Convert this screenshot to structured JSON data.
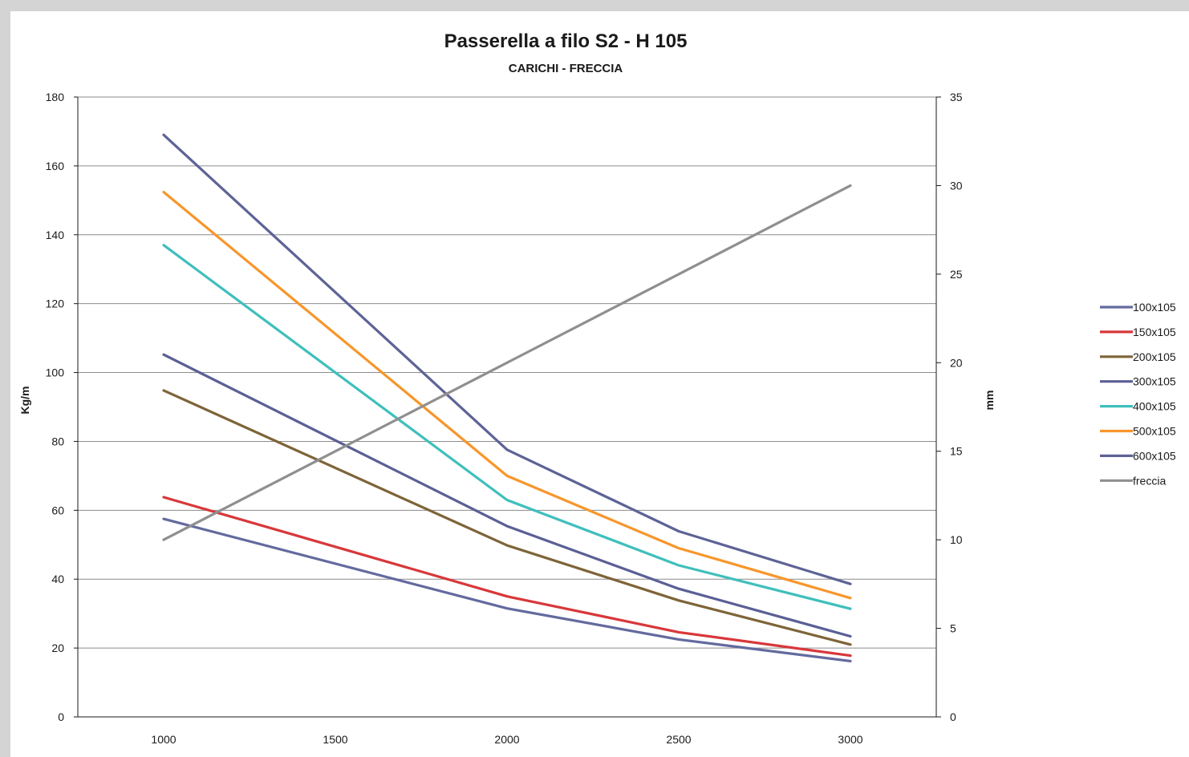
{
  "chart_data": {
    "type": "line",
    "title": "Passerella a filo S2 - H 105",
    "subtitle": "CARICHI - FRECCIA",
    "ylabel": "Kg/m",
    "y2label": "mm",
    "x": [
      1000,
      2000,
      2500,
      3000
    ],
    "x_ticks": [
      "1000",
      "1500",
      "2000",
      "2500",
      "3000"
    ],
    "xlim": [
      750,
      3250
    ],
    "ylim": [
      0,
      180
    ],
    "y_ticks": [
      "0",
      "20",
      "40",
      "60",
      "80",
      "100",
      "120",
      "140",
      "160",
      "180"
    ],
    "y2lim": [
      0,
      35
    ],
    "y2_ticks": [
      "0",
      "5",
      "10",
      "15",
      "20",
      "25",
      "30",
      "35"
    ],
    "grid": "horizontal",
    "legend_position": "right",
    "series": [
      {
        "name": "100x105",
        "axis": "left",
        "color": "#636a9e",
        "values": [
          57.5,
          31.5,
          22.5,
          16.2
        ]
      },
      {
        "name": "150x105",
        "axis": "left",
        "color": "#d8373a",
        "values": [
          63.8,
          35.0,
          24.6,
          17.8
        ]
      },
      {
        "name": "200x105",
        "axis": "left",
        "color": "#7e6438",
        "values": [
          94.8,
          49.8,
          33.8,
          21.0
        ]
      },
      {
        "name": "300x105",
        "axis": "left",
        "color": "#5a5f95",
        "values": [
          105.2,
          55.4,
          37.2,
          23.4
        ]
      },
      {
        "name": "400x105",
        "axis": "left",
        "color": "#3fbfbc",
        "values": [
          137.0,
          63.0,
          44.0,
          31.4
        ]
      },
      {
        "name": "500x105",
        "axis": "left",
        "color": "#f7962b",
        "values": [
          152.4,
          70.0,
          49.0,
          34.5
        ]
      },
      {
        "name": "600x105",
        "axis": "left",
        "color": "#5d6396",
        "values": [
          169.0,
          77.6,
          53.9,
          38.6
        ]
      },
      {
        "name": "freccia",
        "axis": "right",
        "color": "#8f8f8f",
        "values": [
          10.0,
          20.0,
          25.0,
          30.0
        ]
      }
    ]
  }
}
